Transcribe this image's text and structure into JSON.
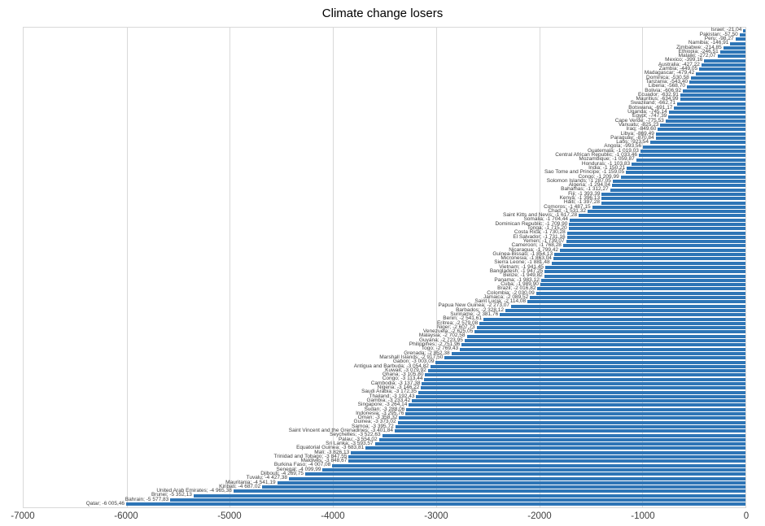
{
  "chart_data": {
    "type": "bar",
    "orientation": "horizontal",
    "title": "Climate change losers",
    "xlabel": "",
    "ylabel": "",
    "xlim": [
      -7000,
      0
    ],
    "x_ticks": [
      -7000,
      -6000,
      -5000,
      -4000,
      -3000,
      -2000,
      -1000,
      0
    ],
    "grid": true,
    "bar_color": "#2E75B6",
    "label_text_color": "#404040",
    "label_separator": "; ",
    "number_format": "european (space thousands, comma decimals, 2 places)",
    "categories": [
      "Israel",
      "Pakistan",
      "Peru",
      "Namibia",
      "Zimbabwe",
      "Ethiopia",
      "Malawi",
      "Mexico",
      "Australia",
      "Zambia",
      "Madagascar",
      "Dominica",
      "Tanzania",
      "Liberia",
      "Bolivia",
      "Ecuador",
      "Mauritius",
      "Swaziland",
      "Botswana",
      "Uganda",
      "Egypt",
      "Cape Verde",
      "Vanuatu",
      "Iraq",
      "Libya",
      "Paraguay",
      "Laos",
      "Angola",
      "Guatemala",
      "Central African Republic",
      "Mozambique",
      "Honduras",
      "India",
      "Sao Tome and Principe",
      "Congo",
      "Solomon Islands",
      "Algeria",
      "Bahamas",
      "Fiji",
      "Kenya",
      "Haiti",
      "Comoros",
      "Chad",
      "Saint Kitts and Nevis",
      "Somalia",
      "Dominican Republic",
      "Tonga",
      "Costa Rica",
      "El Salvador",
      "Yemen",
      "Cameroon",
      "Nicaragua",
      "Guinea-Bissau",
      "Micronesia",
      "Sierra Leone",
      "Vietnam",
      "Bangladesh",
      "Belize",
      "Panama",
      "Cuba",
      "Brazil",
      "Colombia",
      "Jamaica",
      "Saint Lucia",
      "Papua New Guinea",
      "Barbados",
      "Suriname",
      "Benin",
      "Eritrea",
      "Niger",
      "Venezuela",
      "Malaysia",
      "Guyana",
      "Philippines",
      "Togo",
      "Grenada",
      "Marshall Islands",
      "Gabon",
      "Antigua and Barbuda",
      "Kuwait",
      "Ghana",
      "Congo",
      "Cambodia",
      "Nigeria",
      "Saudi Arabia",
      "Thailand",
      "Gambia",
      "Singapore",
      "Sudan",
      "Indonesia",
      "Oman",
      "Guinea",
      "Samoa",
      "Saint Vincent and the Grenadines",
      "Seychelles",
      "Palau",
      "Sri Lanka",
      "Equatorial Guinea",
      "Mali",
      "Trinidad and Tobago",
      "Maldives",
      "Burkina Faso",
      "Senegal",
      "Djibouti",
      "Tuvalu",
      "Mauritania",
      "Kiribati",
      "United Arab Emirates",
      "Brunei",
      "Bahrain",
      "Qatar"
    ],
    "values": [
      -21.04,
      -57.5,
      -98.27,
      -146.91,
      -214.85,
      -246.51,
      -272.07,
      -399.16,
      -427.22,
      -449.05,
      -479.42,
      -530.58,
      -543.4,
      -568.7,
      -606.92,
      -632.91,
      -634.99,
      -662.71,
      -691.17,
      -745.14,
      -747.39,
      -775.53,
      -825.23,
      -849.6,
      -869.49,
      -870.84,
      -923.54,
      -993.56,
      -1019.03,
      -1033.46,
      -1059.87,
      -1103.83,
      -1150.21,
      -1159.05,
      -1209.99,
      -1287.05,
      -1294.04,
      -1312.27,
      -1393.39,
      -1396.13,
      -1397.28,
      -1487.15,
      -1531.32,
      -1617.28,
      -1704.44,
      -1709.9,
      -1715.2,
      -1730.28,
      -1731.16,
      -1739.07,
      -1768.28,
      -1799.42,
      -1854.13,
      -1863.04,
      -1881.48,
      -1941.45,
      -1947.25,
      -1949.82,
      -1983.12,
      -1989.9,
      -2016.82,
      -2030.09,
      -2089.52,
      -2114.08,
      -2273.07,
      -2328.12,
      -2381.76,
      -2541.61,
      -2579.08,
      -2607.73,
      -2625.05,
      -2702.58,
      -2723.95,
      -2751.96,
      -2769.43,
      -2852.38,
      -2917.5,
      -3003.09,
      -3054.82,
      -3079.92,
      -3105.8,
      -3113.44,
      -3137.38,
      -3146.22,
      -3172.35,
      -3192.43,
      -3233.42,
      -3264.14,
      -3288.06,
      -3295.76,
      -3358.32,
      -3373.02,
      -3395.72,
      -3401.84,
      -3522.63,
      -3554.02,
      -3593.57,
      -3683.81,
      -3826.13,
      -3847.55,
      -3848.67,
      -4007.08,
      -4099.99,
      -4269.75,
      -4427.38,
      -4541.19,
      -4687.02,
      -4965.38,
      -5352.13,
      -5577.83,
      -6005.46
    ]
  }
}
